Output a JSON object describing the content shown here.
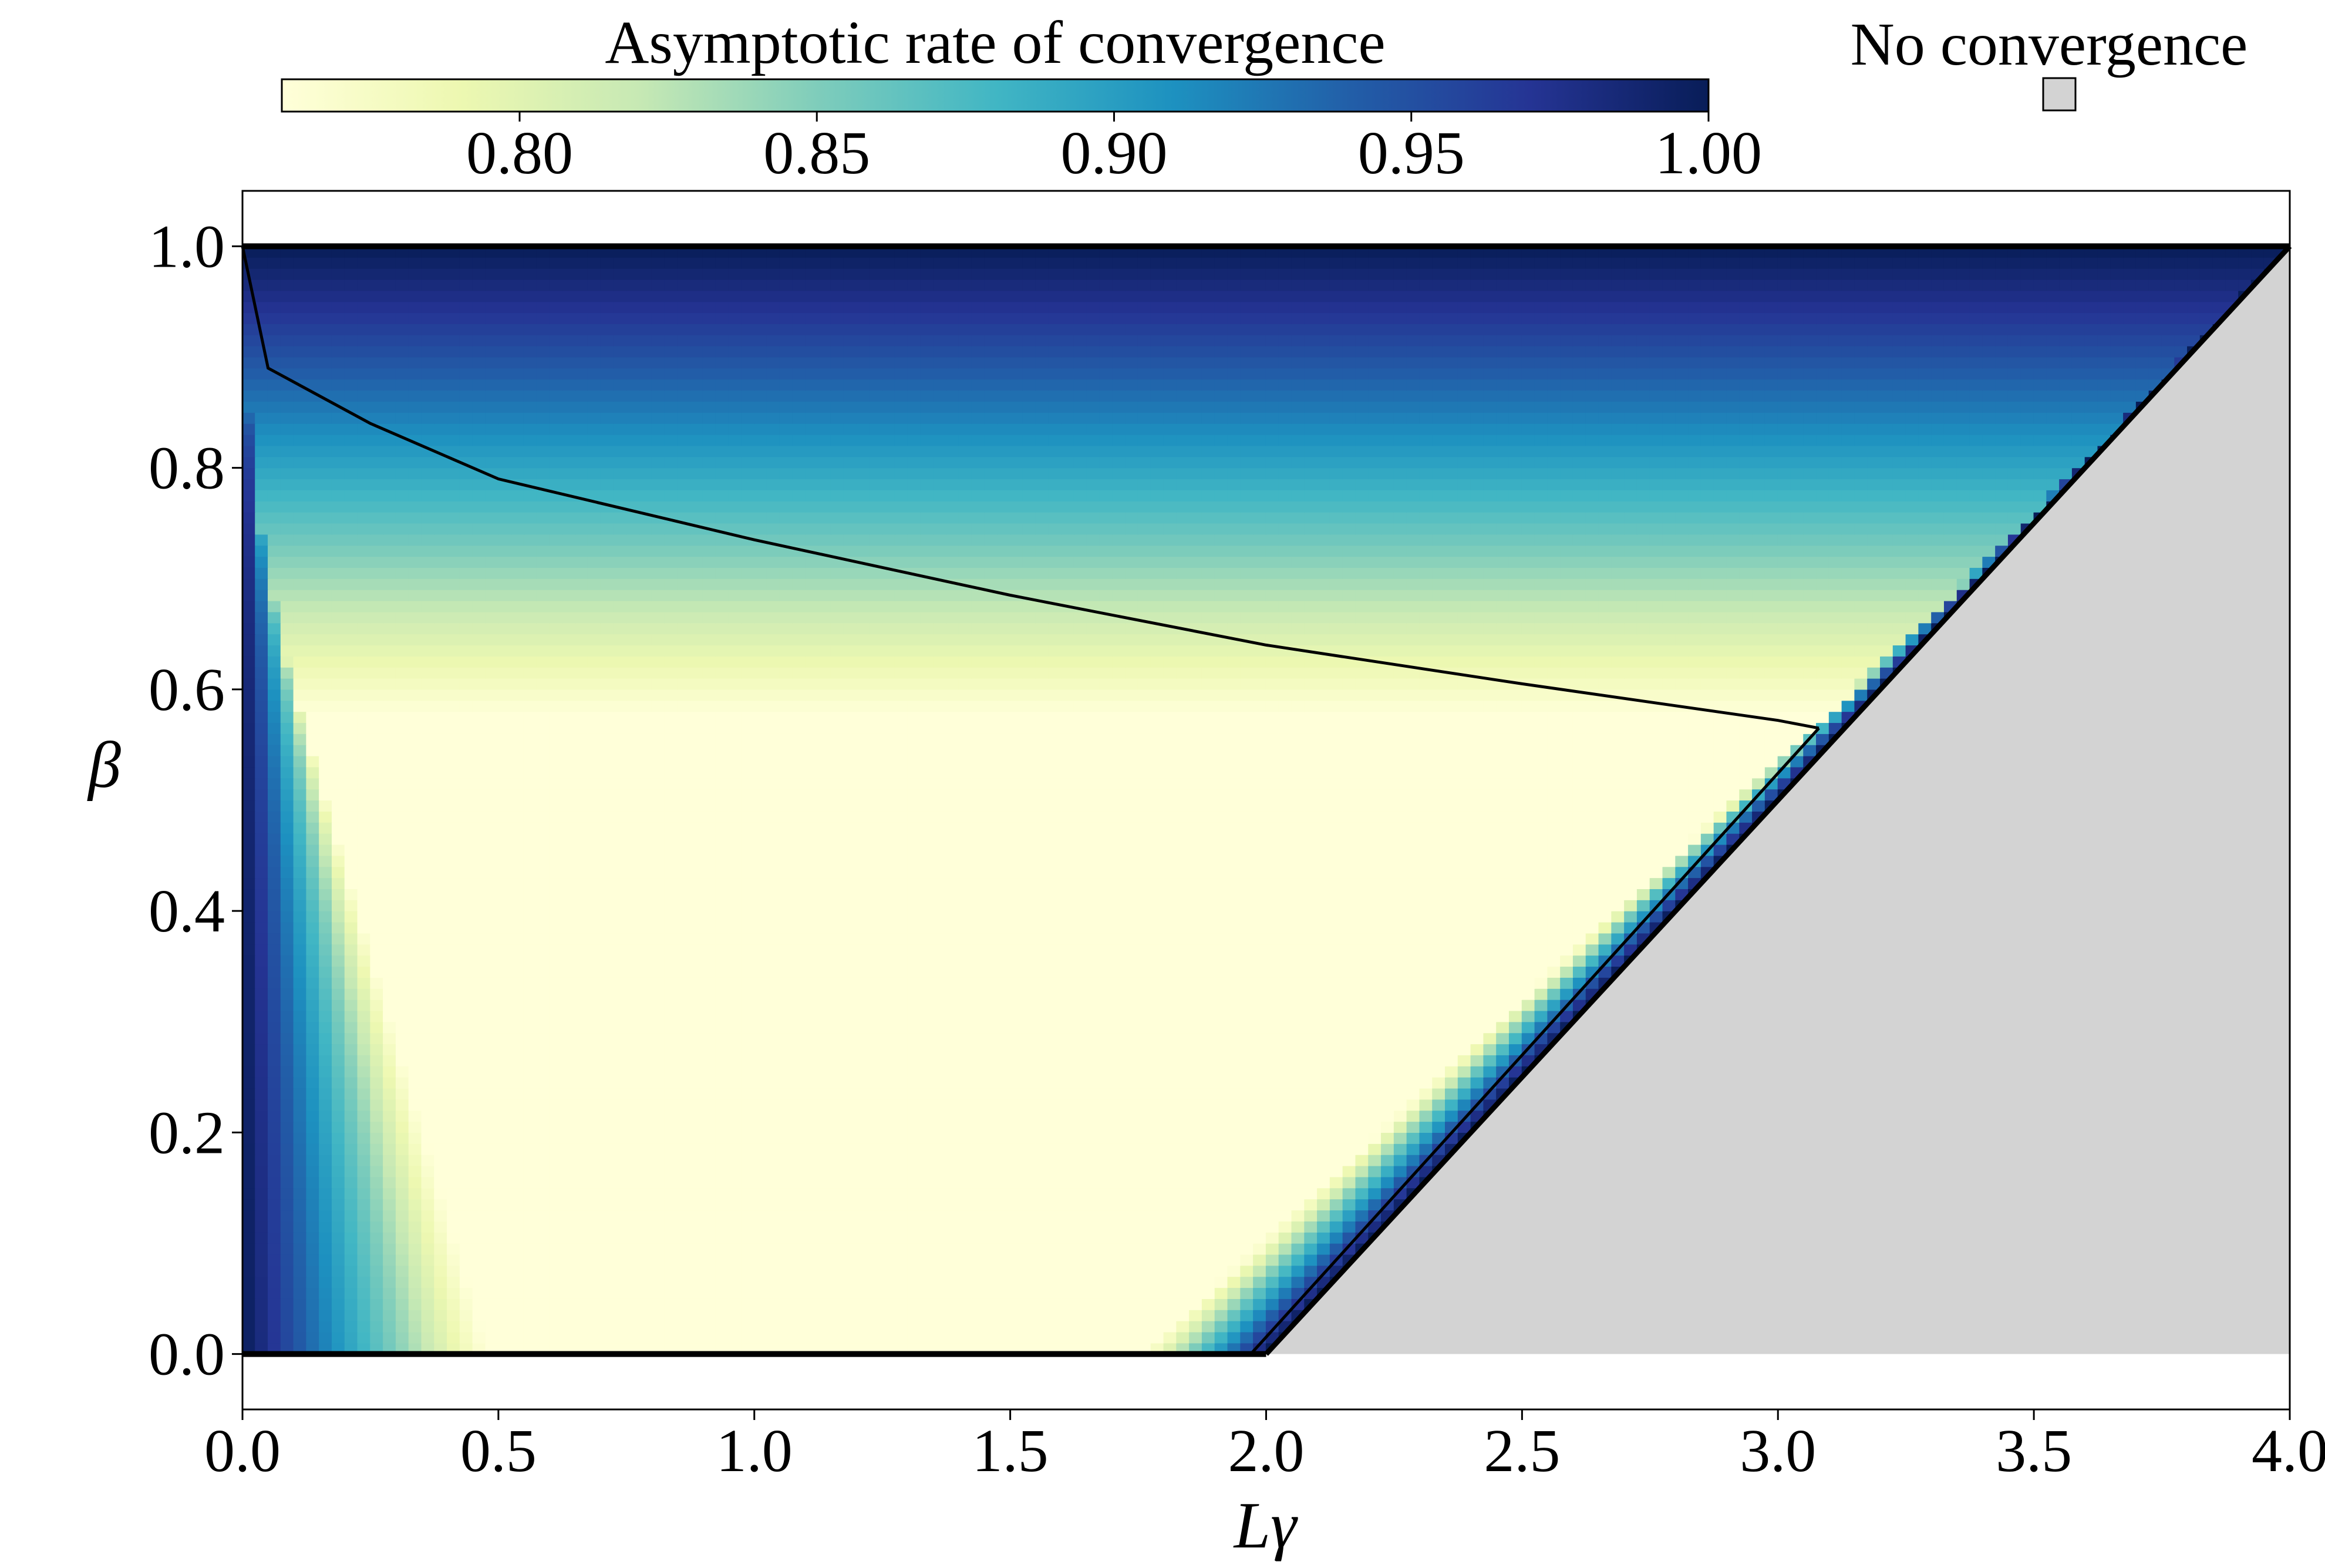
{
  "chart_data": {
    "type": "heatmap",
    "xlabel": "Lγ",
    "ylabel": "β",
    "xlim": [
      0.0,
      4.0
    ],
    "ylim": [
      -0.05,
      1.05
    ],
    "x_ticks": [
      "0.0",
      "0.5",
      "1.0",
      "1.5",
      "2.0",
      "2.5",
      "3.0",
      "3.5",
      "4.0"
    ],
    "y_ticks": [
      "0.0",
      "0.2",
      "0.4",
      "0.6",
      "0.8",
      "1.0"
    ],
    "grid": false,
    "colorbar": {
      "title": "Asymptotic rate of convergence",
      "range": [
        0.76,
        1.0
      ],
      "ticks": [
        "0.80",
        "0.85",
        "0.90",
        "0.95",
        "1.00"
      ],
      "colormap": "YlGnBu",
      "orientation": "horizontal",
      "position": "top"
    },
    "legend": {
      "label": "No convergence",
      "color": "#d3d3d3",
      "placement": "top-right"
    },
    "region": {
      "valid_domain": "0 <= beta <= 1, L*gamma < 2*(1+beta)",
      "no_convergence_domain": "L*gamma >= 2*(1+beta)"
    },
    "boundary_curves": [
      {
        "points": [
          [
            0.0,
            1.0
          ],
          [
            0.05,
            0.89
          ],
          [
            0.25,
            0.84
          ],
          [
            0.5,
            0.79
          ],
          [
            1.0,
            0.735
          ],
          [
            1.5,
            0.685
          ],
          [
            2.0,
            0.64
          ],
          [
            2.5,
            0.605
          ],
          [
            3.0,
            0.572
          ],
          [
            3.08,
            0.565
          ]
        ]
      },
      {
        "points": [
          [
            1.97,
            0.0
          ],
          [
            3.08,
            0.565
          ]
        ]
      }
    ],
    "colors": {
      "no_convergence": "#d3d3d3",
      "boundary": "#000000"
    }
  }
}
